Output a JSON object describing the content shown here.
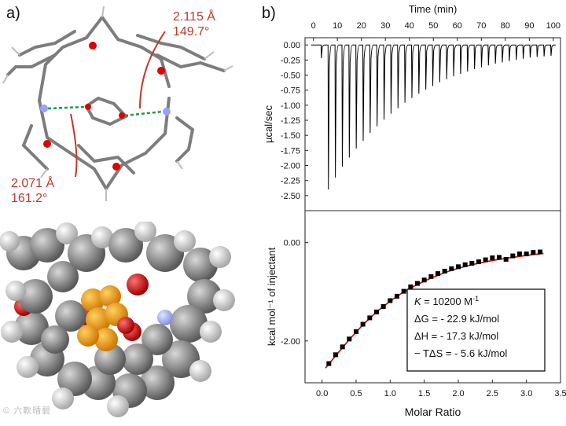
{
  "panels": {
    "a": "a)",
    "b": "b)"
  },
  "annotations": {
    "top_right": {
      "distance": "2.115 Å",
      "angle": "149.7°"
    },
    "bottom_left": {
      "distance": "2.071 Å",
      "angle": "161.2°"
    }
  },
  "watermark": "© 六軟晴碧",
  "colors": {
    "annotation": "#c0392b",
    "fit_line": "#d40000",
    "carbon": "#8a8a8a",
    "oxygen": "#e00000",
    "nitrogen": "#9aa0ff",
    "guest": "#f5a000"
  },
  "chart_data": [
    {
      "type": "line",
      "x_top": {
        "label": "Time (min)",
        "range": [
          -3.5,
          103
        ],
        "ticks": [
          0,
          10,
          20,
          30,
          40,
          50,
          60,
          70,
          80,
          90,
          100
        ]
      },
      "ylabel": "µcal/sec",
      "ylim": [
        -2.75,
        0.12
      ],
      "yticks": [
        0.0,
        -0.25,
        -0.5,
        -0.75,
        -1.0,
        -1.25,
        -1.5,
        -1.75,
        -2.0,
        -2.25,
        -2.5
      ],
      "ytick_labels": [
        "0.00",
        "-0.25",
        "-0.50",
        "-0.75",
        "-1.00",
        "-1.25",
        "-1.50",
        "-1.75",
        "-2.00",
        "-2.25",
        "-2.50"
      ],
      "injection_times": [
        3.2,
        6.1,
        9.0,
        11.9,
        14.8,
        17.7,
        20.6,
        23.5,
        26.4,
        29.3,
        32.2,
        35.1,
        38.0,
        40.9,
        43.8,
        46.7,
        49.6,
        52.5,
        55.4,
        58.3,
        61.2,
        64.1,
        67.0,
        69.9,
        72.8,
        75.7,
        78.6,
        81.5,
        84.4,
        87.3,
        90.2,
        93.1,
        96.0,
        98.9
      ],
      "peak_values": [
        -0.22,
        -2.4,
        -2.2,
        -2.02,
        -1.87,
        -1.72,
        -1.59,
        -1.46,
        -1.35,
        -1.24,
        -1.14,
        -1.05,
        -0.96,
        -0.88,
        -0.81,
        -0.74,
        -0.68,
        -0.62,
        -0.57,
        -0.52,
        -0.48,
        -0.44,
        -0.4,
        -0.37,
        -0.34,
        -0.31,
        -0.29,
        -0.27,
        -0.25,
        -0.23,
        -0.21,
        -0.2,
        -0.19,
        -0.18
      ]
    },
    {
      "type": "scatter",
      "xlabel": "Molar Ratio",
      "ylabel": "kcal mol⁻¹ of injectant",
      "xlim": [
        -0.25,
        3.5
      ],
      "xticks": [
        0.0,
        0.5,
        1.0,
        1.5,
        2.0,
        2.5,
        3.0,
        3.5
      ],
      "xtick_labels": [
        "0.0",
        "0.5",
        "1.0",
        "1.5",
        "2.0",
        "2.5",
        "3.0",
        "3.5"
      ],
      "ylim": [
        -2.85,
        0.65
      ],
      "yticks": [
        0.0,
        -2.0
      ],
      "ytick_labels": [
        "0.00",
        "-2.00"
      ],
      "points": {
        "x": [
          0.1,
          0.2,
          0.3,
          0.4,
          0.5,
          0.6,
          0.7,
          0.8,
          0.9,
          1.0,
          1.1,
          1.2,
          1.3,
          1.4,
          1.5,
          1.6,
          1.7,
          1.8,
          1.9,
          2.0,
          2.1,
          2.2,
          2.3,
          2.4,
          2.5,
          2.6,
          2.7,
          2.8,
          2.9,
          3.0,
          3.1,
          3.2
        ],
        "y": [
          -2.46,
          -2.28,
          -2.12,
          -1.96,
          -1.81,
          -1.66,
          -1.53,
          -1.41,
          -1.3,
          -1.18,
          -1.09,
          -0.99,
          -0.9,
          -0.83,
          -0.76,
          -0.69,
          -0.63,
          -0.58,
          -0.53,
          -0.49,
          -0.45,
          -0.42,
          -0.39,
          -0.35,
          -0.31,
          -0.3,
          -0.34,
          -0.27,
          -0.23,
          -0.23,
          -0.2,
          -0.19
        ]
      },
      "fit": {
        "x": [
          0.05,
          0.2,
          0.4,
          0.6,
          0.8,
          1.0,
          1.2,
          1.4,
          1.6,
          1.8,
          2.0,
          2.2,
          2.4,
          2.6,
          2.8,
          3.0,
          3.25
        ],
        "y": [
          -2.55,
          -2.3,
          -1.97,
          -1.67,
          -1.41,
          -1.19,
          -1.0,
          -0.85,
          -0.72,
          -0.61,
          -0.52,
          -0.45,
          -0.39,
          -0.34,
          -0.3,
          -0.26,
          -0.22
        ]
      },
      "legend_lines": [
        "= 10200 M",
        "ΔG = - 22.9 kJ/mol",
        "ΔH = - 17.3 kJ/mol",
        "− TΔS = - 5.6 kJ/mol"
      ],
      "legend_K_symbol": "K",
      "legend_K_exp": "-1",
      "legend_position": "bottom-right"
    }
  ]
}
